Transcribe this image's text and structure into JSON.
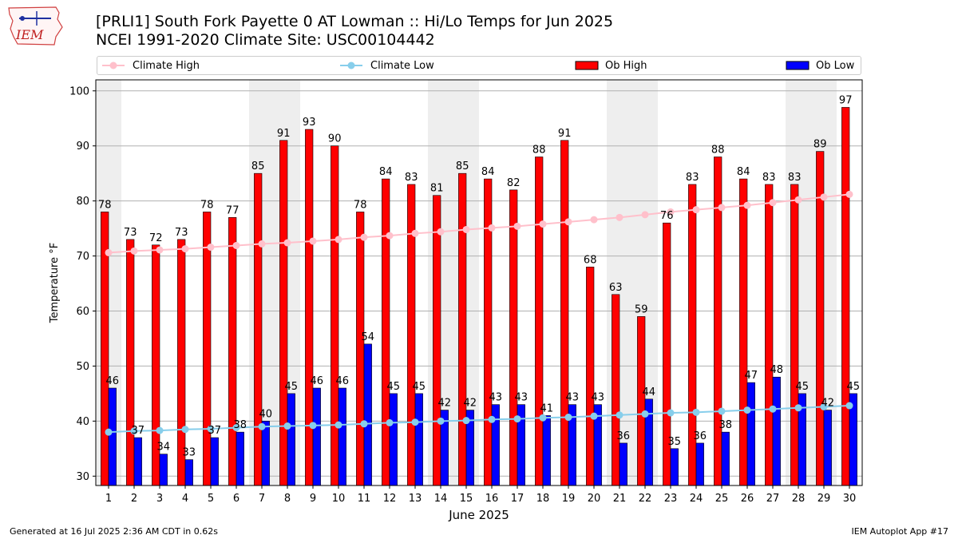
{
  "header": {
    "logo_text": "IEM",
    "title": "[PRLI1] South Fork Payette 0 AT Lowman :: Hi/Lo Temps for Jun 2025",
    "subtitle": "NCEI 1991-2020 Climate Site: USC00104442"
  },
  "legend": [
    {
      "label": "Climate High",
      "kind": "line",
      "color": "#ffc0cb"
    },
    {
      "label": "Climate Low",
      "kind": "line",
      "color": "#87ceeb"
    },
    {
      "label": "Ob High",
      "kind": "bar",
      "color": "#ff0000"
    },
    {
      "label": "Ob Low",
      "kind": "bar",
      "color": "#0000ff"
    }
  ],
  "footer": {
    "left": "Generated at 16 Jul 2025 2:36 AM CDT in 0.62s",
    "right": "IEM Autoplot App #17"
  },
  "chart_data": {
    "type": "bar",
    "title": "[PRLI1] South Fork Payette 0 AT Lowman :: Hi/Lo Temps for Jun 2025",
    "subtitle": "NCEI 1991-2020 Climate Site: USC00104442",
    "xlabel": "June 2025",
    "ylabel": "Temperature °F",
    "ylim": [
      28.3,
      102
    ],
    "yticks": [
      30,
      40,
      50,
      60,
      70,
      80,
      90,
      100
    ],
    "grid": "horizontal",
    "legend_position": "top",
    "shaded_days": [
      1,
      7,
      8,
      14,
      15,
      21,
      22,
      28,
      29
    ],
    "categories": [
      1,
      2,
      3,
      4,
      5,
      6,
      7,
      8,
      9,
      10,
      11,
      12,
      13,
      14,
      15,
      16,
      17,
      18,
      19,
      20,
      21,
      22,
      23,
      24,
      25,
      26,
      27,
      28,
      29,
      30
    ],
    "series": [
      {
        "name": "Ob High",
        "kind": "bar",
        "color": "#ff0000",
        "values": [
          78,
          73,
          72,
          73,
          78,
          77,
          85,
          91,
          93,
          90,
          78,
          84,
          83,
          81,
          85,
          84,
          82,
          88,
          91,
          68,
          63,
          59,
          76,
          83,
          88,
          84,
          83,
          83,
          89,
          97
        ]
      },
      {
        "name": "Ob Low",
        "kind": "bar",
        "color": "#0000ff",
        "values": [
          46,
          37,
          34,
          33,
          37,
          38,
          40,
          45,
          46,
          46,
          54,
          45,
          45,
          42,
          42,
          43,
          43,
          41,
          43,
          43,
          36,
          44,
          35,
          36,
          38,
          47,
          48,
          45,
          42,
          45
        ]
      },
      {
        "name": "Climate High",
        "kind": "line",
        "color": "#ffc0cb",
        "values": [
          70.6,
          70.9,
          71.1,
          71.3,
          71.6,
          71.9,
          72.2,
          72.4,
          72.7,
          73.0,
          73.4,
          73.7,
          74.1,
          74.4,
          74.8,
          75.1,
          75.4,
          75.8,
          76.2,
          76.6,
          77.0,
          77.5,
          78.0,
          78.4,
          78.8,
          79.2,
          79.7,
          80.2,
          80.7,
          81.2
        ]
      },
      {
        "name": "Climate Low",
        "kind": "line",
        "color": "#87ceeb",
        "values": [
          38.0,
          38.2,
          38.3,
          38.5,
          38.6,
          38.8,
          39.0,
          39.1,
          39.2,
          39.3,
          39.5,
          39.7,
          39.8,
          40.0,
          40.1,
          40.3,
          40.4,
          40.6,
          40.7,
          40.9,
          41.1,
          41.3,
          41.5,
          41.6,
          41.8,
          42.0,
          42.2,
          42.4,
          42.6,
          42.8
        ]
      }
    ]
  }
}
